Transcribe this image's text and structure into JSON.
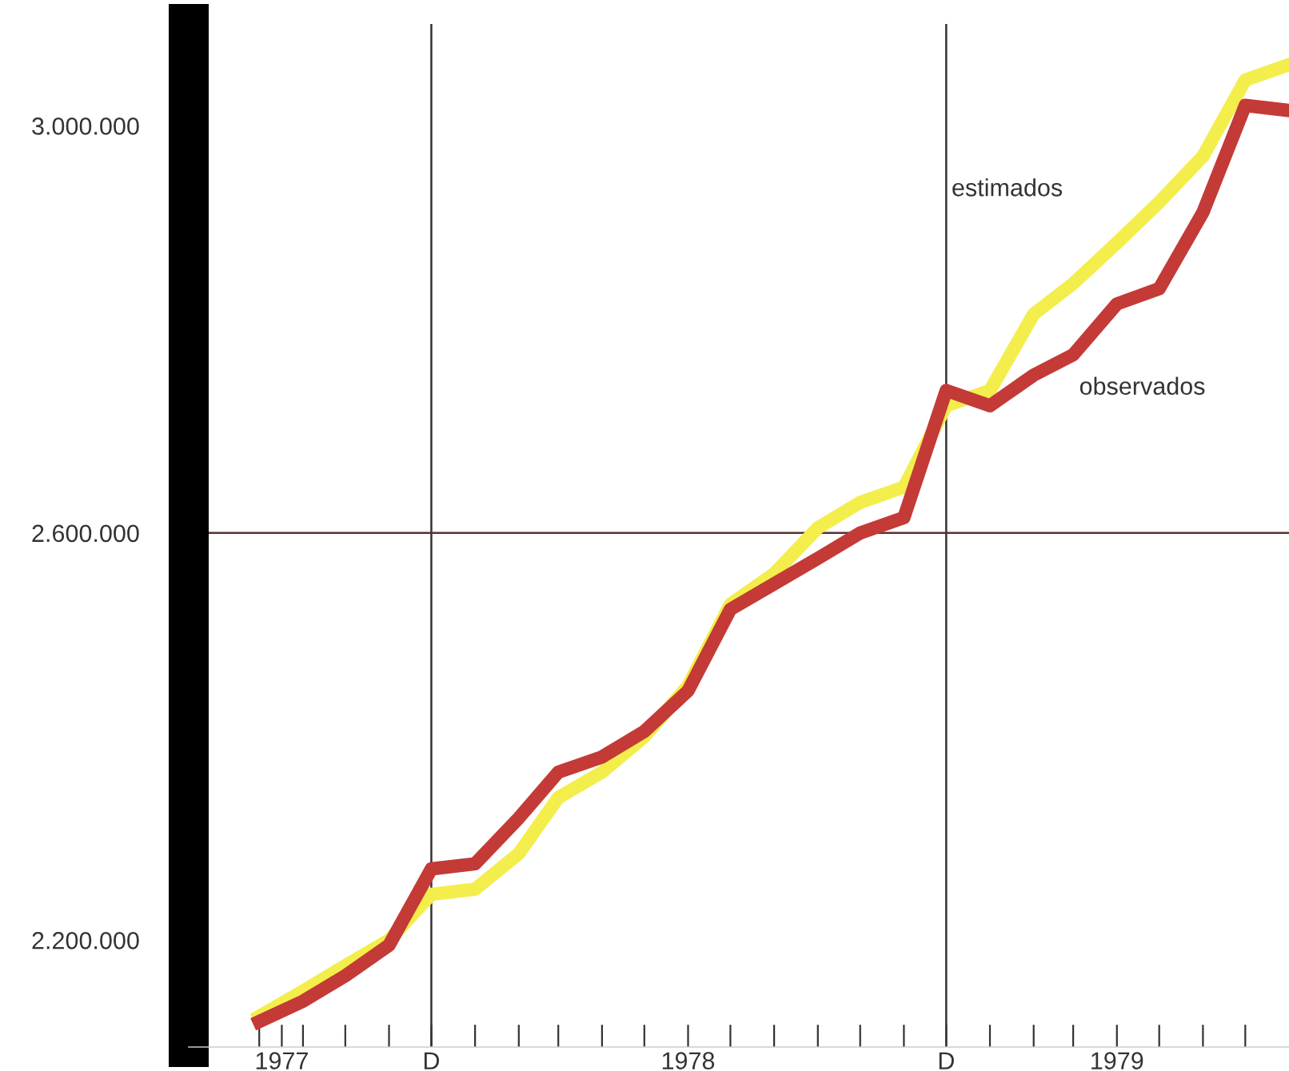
{
  "chart_data": {
    "type": "line",
    "x": [
      "1977-08",
      "1977-09",
      "1977-10",
      "1977-11",
      "1977-12",
      "1978-01",
      "1978-02",
      "1978-03",
      "1978-04",
      "1978-05",
      "1978-06",
      "1978-07",
      "1978-08",
      "1978-09",
      "1978-10",
      "1978-11",
      "1978-12",
      "1979-01",
      "1979-02",
      "1979-03",
      "1979-04",
      "1979-05",
      "1979-06",
      "1979-07",
      "1979-08"
    ],
    "series": [
      {
        "name": "estimados",
        "color": "#f3ee4c",
        "values": [
          2125000,
          2150000,
          2175000,
          2200000,
          2245000,
          2250000,
          2285000,
          2340000,
          2365000,
          2400000,
          2450000,
          2530000,
          2560000,
          2605000,
          2630000,
          2645000,
          2725000,
          2740000,
          2815000,
          2845000,
          2885000,
          2925000,
          2970000,
          3045000,
          3060000
        ]
      },
      {
        "name": "observados",
        "color": "#c43a36",
        "values": [
          2120000,
          2140000,
          2165000,
          2195000,
          2270000,
          2275000,
          2320000,
          2365000,
          2380000,
          2405000,
          2445000,
          2525000,
          2550000,
          2575000,
          2600000,
          2615000,
          2740000,
          2725000,
          2755000,
          2775000,
          2825000,
          2840000,
          2915000,
          3020000,
          3015000
        ]
      }
    ],
    "xlim": [
      "1977-06-12",
      "1979-08-01"
    ],
    "ylim": [
      2095000,
      3100000
    ],
    "xticks": [
      {
        "value": "1977-08",
        "label": null
      },
      {
        "value": "1977-08-17",
        "label": "1977"
      },
      {
        "value": "1977-09",
        "label": null
      },
      {
        "value": "1977-10",
        "label": null
      },
      {
        "value": "1977-11",
        "label": null
      },
      {
        "value": "1977-12",
        "label": "D"
      },
      {
        "value": "1978-01",
        "label": null
      },
      {
        "value": "1978-02",
        "label": null
      },
      {
        "value": "1978-03",
        "label": null
      },
      {
        "value": "1978-04",
        "label": null
      },
      {
        "value": "1978-05",
        "label": null
      },
      {
        "value": "1978-06",
        "label": "1978"
      },
      {
        "value": "1978-07",
        "label": null
      },
      {
        "value": "1978-08",
        "label": null
      },
      {
        "value": "1978-09",
        "label": null
      },
      {
        "value": "1978-10",
        "label": null
      },
      {
        "value": "1978-11",
        "label": null
      },
      {
        "value": "1978-12",
        "label": "D"
      },
      {
        "value": "1979-01",
        "label": null
      },
      {
        "value": "1979-02",
        "label": null
      },
      {
        "value": "1979-03",
        "label": null
      },
      {
        "value": "1979-04",
        "label": "1979"
      },
      {
        "value": "1979-05",
        "label": null
      },
      {
        "value": "1979-06",
        "label": null
      },
      {
        "value": "1979-07",
        "label": null
      }
    ],
    "yticks": [
      {
        "value": 2100000,
        "label": null
      },
      {
        "value": 2200000,
        "label": "2.200.000"
      },
      {
        "value": 2300000,
        "label": null
      },
      {
        "value": 2400000,
        "label": null
      },
      {
        "value": 2500000,
        "label": null
      },
      {
        "value": 2600000,
        "label": "2.600.000"
      },
      {
        "value": 2700000,
        "label": null
      },
      {
        "value": 2800000,
        "label": null
      },
      {
        "value": 2900000,
        "label": null
      },
      {
        "value": 3000000,
        "label": "3.000.000"
      },
      {
        "value": 3100000,
        "label": null
      }
    ],
    "ref_lines": [
      {
        "axis": "x",
        "value": "1977-12",
        "label": null,
        "color": "#333333"
      },
      {
        "axis": "x",
        "value": "1978-12",
        "label": null,
        "color": "#333333"
      },
      {
        "axis": "y",
        "value": 2600000,
        "label": null,
        "color": "#5a3030"
      }
    ],
    "grid": false,
    "legend": false,
    "marker": "none",
    "line_style": "solid"
  }
}
